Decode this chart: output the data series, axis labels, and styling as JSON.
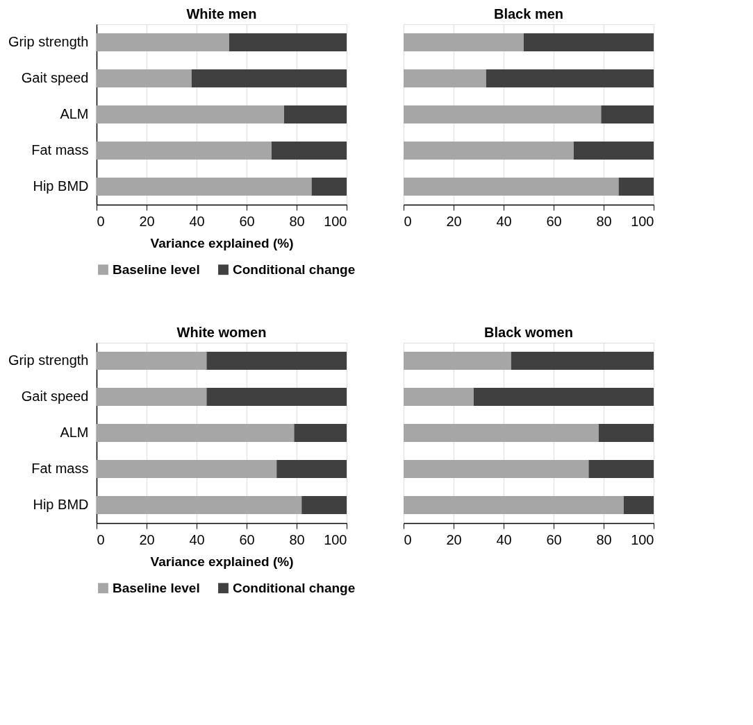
{
  "chart_data": [
    {
      "type": "bar",
      "title": "White men",
      "orientation": "horizontal",
      "stacked": true,
      "categories": [
        "Grip strength",
        "Gait speed",
        "ALM",
        "Fat mass",
        "Hip BMD"
      ],
      "xlabel": "Variance explained (%)",
      "xlim": [
        0,
        100
      ],
      "xticks": [
        0,
        20,
        40,
        60,
        80,
        100
      ],
      "grid": "x",
      "legend": "bottom",
      "series": [
        {
          "name": "Baseline level",
          "color": "#a6a6a6",
          "values": [
            53,
            38,
            75,
            70,
            86
          ]
        },
        {
          "name": "Conditional change",
          "color": "#404040",
          "values": [
            47,
            62,
            25,
            30,
            14
          ]
        }
      ]
    },
    {
      "type": "bar",
      "title": "Black men",
      "orientation": "horizontal",
      "stacked": true,
      "categories": [
        "Grip strength",
        "Gait speed",
        "ALM",
        "Fat mass",
        "Hip BMD"
      ],
      "xlim": [
        0,
        100
      ],
      "xticks": [
        0,
        20,
        40,
        60,
        80,
        100
      ],
      "grid": "x",
      "tick_labels": "x",
      "legend": "bottom",
      "series": [
        {
          "name": "Baseline level",
          "color": "#a6a6a6",
          "values": [
            48,
            33,
            79,
            68,
            86
          ]
        },
        {
          "name": "Conditional change",
          "color": "#404040",
          "values": [
            52,
            67,
            21,
            32,
            14
          ]
        }
      ]
    },
    {
      "type": "bar",
      "title": "White women",
      "orientation": "horizontal",
      "stacked": true,
      "categories": [
        "Grip strength",
        "Gait speed",
        "ALM",
        "Fat mass",
        "Hip BMD"
      ],
      "xlabel": "Variance explained (%)",
      "xlim": [
        0,
        100
      ],
      "xticks": [
        0,
        20,
        40,
        60,
        80,
        100
      ],
      "grid": "x",
      "legend": "bottom",
      "series": [
        {
          "name": "Baseline level",
          "color": "#a6a6a6",
          "values": [
            44,
            44,
            79,
            72,
            82
          ]
        },
        {
          "name": "Conditional change",
          "color": "#404040",
          "values": [
            56,
            56,
            21,
            28,
            18
          ]
        }
      ]
    },
    {
      "type": "bar",
      "title": "Black women",
      "orientation": "horizontal",
      "stacked": true,
      "categories": [
        "Grip strength",
        "Gait speed",
        "ALM",
        "Fat mass",
        "Hip BMD"
      ],
      "xlim": [
        0,
        100
      ],
      "xticks": [
        0,
        20,
        40,
        60,
        80,
        100
      ],
      "grid": "x",
      "tick_labels": "x",
      "legend": "bottom",
      "series": [
        {
          "name": "Baseline level",
          "color": "#a6a6a6",
          "values": [
            43,
            28,
            78,
            74,
            88
          ]
        },
        {
          "name": "Conditional change",
          "color": "#404040",
          "values": [
            57,
            72,
            22,
            26,
            12
          ]
        }
      ]
    }
  ]
}
